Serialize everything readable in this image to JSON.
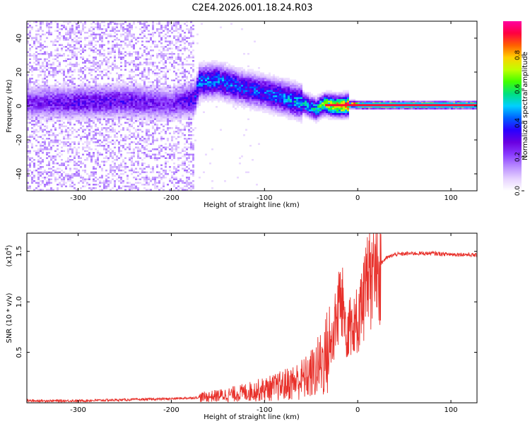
{
  "title": "C2E4.2026.001.18.24.R03",
  "colors": {
    "snr_line": "#e8302a",
    "colormap": [
      "#ffffff",
      "#e6d2ff",
      "#b98cff",
      "#8a3bff",
      "#6a00e0",
      "#2a00ff",
      "#0060ff",
      "#00d0ff",
      "#00e080",
      "#40ff00",
      "#c0ff00",
      "#ffd000",
      "#ff6000",
      "#ff0040",
      "#ff00a0"
    ]
  },
  "chart_data": [
    {
      "type": "heatmap",
      "xlabel": "Height of straight line (km)",
      "ylabel": "Frequency (Hz)",
      "xlim": [
        -355,
        128
      ],
      "ylim": [
        -50,
        50
      ],
      "xticks": [
        -300,
        -200,
        -100,
        0,
        100
      ],
      "xtick_labels": [
        "-300",
        "-200",
        "-100",
        "0",
        "100"
      ],
      "yticks": [
        -40,
        -20,
        0,
        20,
        40
      ],
      "ytick_labels": [
        "-40",
        "-20",
        "0",
        "20",
        "40"
      ],
      "colorbar": {
        "label": "Normalized spectral amplitude",
        "range": [
          0,
          1
        ],
        "ticks": [
          0,
          0.2,
          0.4,
          0.6,
          0.8
        ],
        "tick_labels": [
          "0.0",
          "0.2",
          "0.4",
          "0.6",
          "0.8"
        ]
      },
      "ridge": {
        "x": [
          -355,
          -300,
          -250,
          -200,
          -175,
          -170,
          -150,
          -120,
          -100,
          -80,
          -60,
          -45,
          -35,
          -25,
          -15,
          -5,
          0,
          20,
          60,
          100,
          128
        ],
        "y": [
          2,
          2,
          3,
          1,
          4,
          14,
          15,
          10,
          8,
          5,
          2,
          -2,
          1,
          0,
          0,
          1,
          0.5,
          0.5,
          0.5,
          0.5,
          0.5
        ],
        "amplitude": [
          0.25,
          0.3,
          0.3,
          0.25,
          0.35,
          0.45,
          0.45,
          0.4,
          0.4,
          0.45,
          0.5,
          0.55,
          0.7,
          0.8,
          0.85,
          0.9,
          0.92,
          0.92,
          0.92,
          0.92,
          0.92
        ]
      }
    },
    {
      "type": "line",
      "xlabel": "Height of straight line (km)",
      "ylabel": "SNR (10 * v/v)",
      "scale_note": "(x10",
      "scale_exp": "4",
      "scale_close": ")",
      "xlim": [
        -355,
        128
      ],
      "ylim": [
        0,
        1.68
      ],
      "xticks": [
        -300,
        -200,
        -100,
        0,
        100
      ],
      "xtick_labels": [
        "-300",
        "-200",
        "-100",
        "0",
        "100"
      ],
      "yticks": [
        0.5,
        1.0,
        1.5
      ],
      "ytick_labels": [
        "0.5",
        "1.0",
        "1.5"
      ],
      "series": [
        {
          "x": [
            -355,
            -300,
            -250,
            -200,
            -175,
            -150,
            -130,
            -110,
            -90,
            -70,
            -55,
            -45,
            -35,
            -28,
            -22,
            -18,
            -15,
            -12,
            -8,
            -5,
            0,
            5,
            10,
            15,
            20,
            25,
            30,
            40,
            60,
            80,
            100,
            115,
            128
          ],
          "y": [
            0.02,
            0.02,
            0.03,
            0.04,
            0.05,
            0.07,
            0.09,
            0.12,
            0.15,
            0.2,
            0.25,
            0.32,
            0.45,
            0.6,
            0.85,
            1.05,
            0.85,
            0.75,
            0.85,
            0.7,
            0.85,
            1.0,
            1.15,
            1.25,
            1.32,
            1.38,
            1.43,
            1.47,
            1.48,
            1.48,
            1.47,
            1.47,
            1.46
          ]
        }
      ]
    }
  ]
}
